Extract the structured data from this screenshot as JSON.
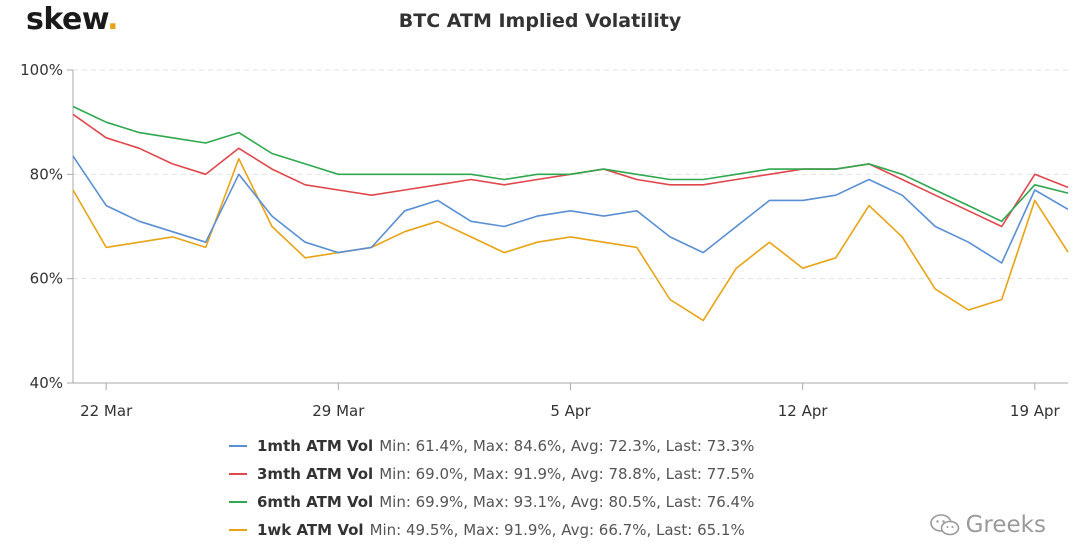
{
  "brand": {
    "name": "skew",
    "dot": "."
  },
  "watermark": {
    "text": "Greeks"
  },
  "colors": {
    "1mth": "#5b8fd4",
    "3mth": "#e0474c",
    "6mth": "#2fa84f",
    "1wk": "#e8a317",
    "grid": "#e3e3e3",
    "axis": "#aaaaaa"
  },
  "chart_data": {
    "type": "line",
    "title": "BTC ATM Implied Volatility",
    "xlabel": "",
    "ylabel": "",
    "x_unit": "date",
    "xlim": [
      "2021-03-21",
      "2021-04-20"
    ],
    "ylim": [
      40,
      100
    ],
    "yticks": [
      "40%",
      "60%",
      "80%",
      "100%"
    ],
    "ytick_values": [
      40,
      60,
      80,
      100
    ],
    "xticks": [
      "22 Mar",
      "29 Mar",
      "5 Apr",
      "12 Apr",
      "19 Apr"
    ],
    "xtick_dates": [
      "2021-03-22",
      "2021-03-29",
      "2021-04-05",
      "2021-04-12",
      "2021-04-19"
    ],
    "grid": true,
    "legend_position": "bottom",
    "x": [
      "2021-03-21",
      "2021-03-22",
      "2021-03-23",
      "2021-03-24",
      "2021-03-25",
      "2021-03-26",
      "2021-03-27",
      "2021-03-28",
      "2021-03-29",
      "2021-03-30",
      "2021-03-31",
      "2021-04-01",
      "2021-04-02",
      "2021-04-03",
      "2021-04-04",
      "2021-04-05",
      "2021-04-06",
      "2021-04-07",
      "2021-04-08",
      "2021-04-09",
      "2021-04-10",
      "2021-04-11",
      "2021-04-12",
      "2021-04-13",
      "2021-04-14",
      "2021-04-15",
      "2021-04-16",
      "2021-04-17",
      "2021-04-18",
      "2021-04-19",
      "2021-04-20"
    ],
    "series": [
      {
        "key": "1mth",
        "name": "1mth ATM Vol",
        "stats": "Min: 61.4%, Max: 84.6%, Avg: 72.3%, Last: 73.3%",
        "values": [
          83.5,
          74,
          71,
          69,
          67,
          80,
          72,
          67,
          65,
          66,
          73,
          75,
          71,
          70,
          72,
          73,
          72,
          73,
          68,
          65,
          70,
          75,
          75,
          76,
          79,
          76,
          70,
          67,
          63,
          77,
          73.3
        ]
      },
      {
        "key": "3mth",
        "name": "3mth ATM Vol",
        "stats": "Min: 69.0%, Max: 91.9%, Avg: 78.8%, Last: 77.5%",
        "values": [
          91.5,
          87,
          85,
          82,
          80,
          85,
          81,
          78,
          77,
          76,
          77,
          78,
          79,
          78,
          79,
          80,
          81,
          79,
          78,
          78,
          79,
          80,
          81,
          81,
          82,
          79,
          76,
          73,
          70,
          80,
          77.5
        ]
      },
      {
        "key": "6mth",
        "name": "6mth ATM Vol",
        "stats": "Min: 69.9%, Max: 93.1%, Avg: 80.5%, Last: 76.4%",
        "values": [
          93,
          90,
          88,
          87,
          86,
          88,
          84,
          82,
          80,
          80,
          80,
          80,
          80,
          79,
          80,
          80,
          81,
          80,
          79,
          79,
          80,
          81,
          81,
          81,
          82,
          80,
          77,
          74,
          71,
          78,
          76.4
        ]
      },
      {
        "key": "1wk",
        "name": "1wk ATM Vol",
        "stats": "Min: 49.5%, Max: 91.9%, Avg: 66.7%, Last: 65.1%",
        "values": [
          77,
          66,
          67,
          68,
          66,
          83,
          70,
          64,
          65,
          66,
          69,
          71,
          68,
          65,
          67,
          68,
          67,
          66,
          56,
          52,
          62,
          67,
          62,
          64,
          74,
          68,
          58,
          54,
          56,
          75,
          65.1
        ]
      }
    ]
  }
}
